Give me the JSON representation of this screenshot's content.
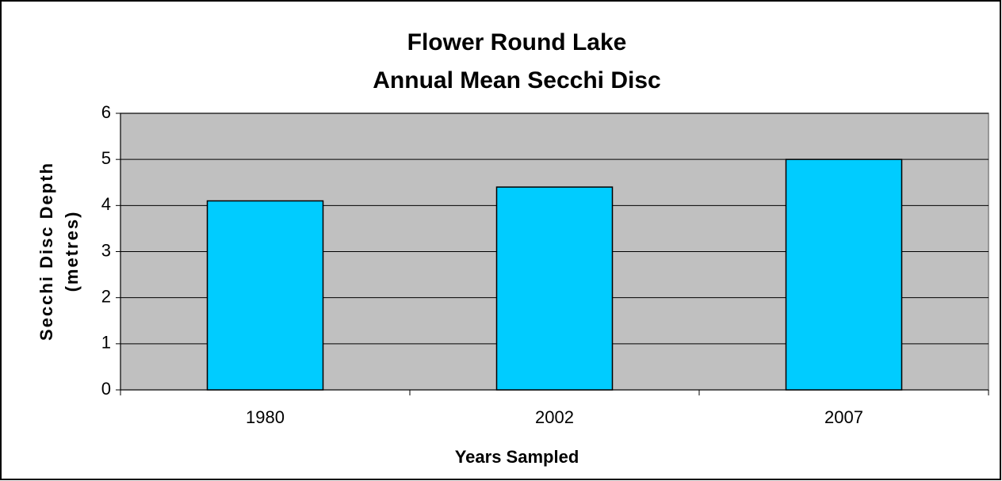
{
  "chart_data": {
    "type": "bar",
    "title": [
      "Flower Round Lake",
      "Annual Mean Secchi Disc"
    ],
    "y_axis_label": [
      "Secchi Disc Depth",
      "(metres)"
    ],
    "x_axis_label": "Years Sampled",
    "categories": [
      "1980",
      "2002",
      "2007"
    ],
    "values": [
      4.1,
      4.4,
      5.0
    ],
    "color": "#00ccff",
    "ylim": [
      0,
      6
    ],
    "yticks": [
      0,
      1,
      2,
      3,
      4,
      5,
      6
    ],
    "grid": true
  }
}
